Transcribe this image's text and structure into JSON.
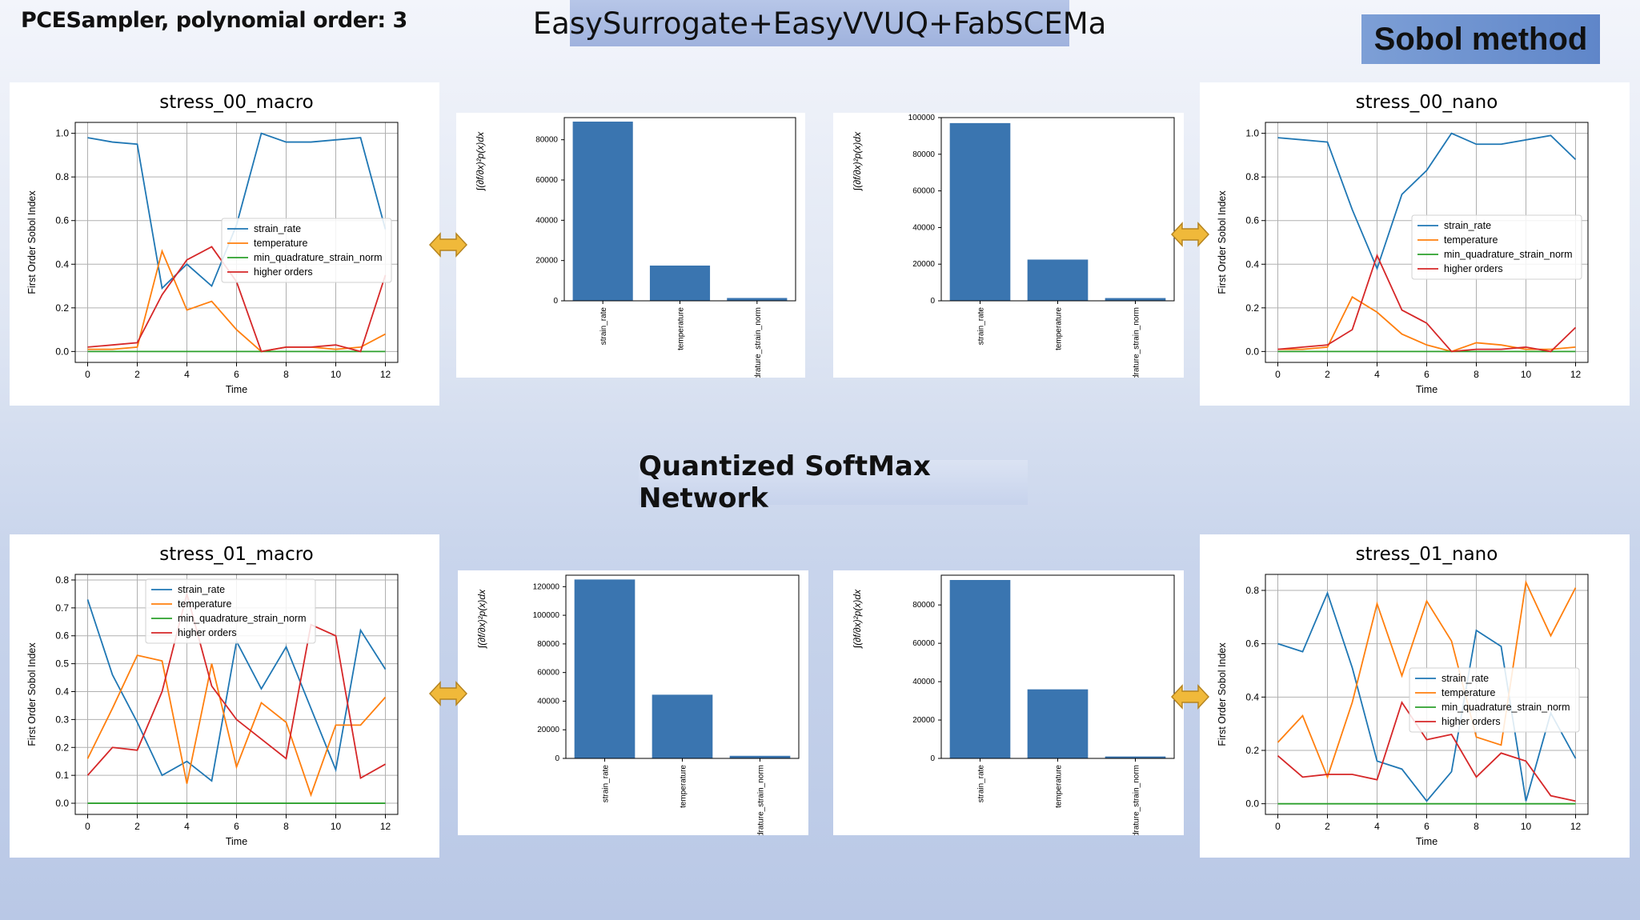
{
  "header": {
    "sampler_label": "PCESampler, polynomial order: 3",
    "tools_label": "EasySurrogate+EasyVVUQ+FabSCEMa",
    "method_label": "Sobol method",
    "network_label": "Quantized SoftMax Network"
  },
  "colors": {
    "strain_rate": "#1f77b4",
    "temperature": "#ff7f0e",
    "min_quadrature_strain_norm": "#2ca02c",
    "higher_orders": "#d62728",
    "bar": "#3a75b0",
    "arrow": "#f0b93a"
  },
  "chart_data": [
    {
      "id": "stress_00_macro",
      "type": "line",
      "title": "stress_00_macro",
      "xlabel": "Time",
      "ylabel": "First Order Sobol Index",
      "xlim": [
        -0.5,
        12.5
      ],
      "ylim": [
        -0.05,
        1.05
      ],
      "xticks": [
        0,
        2,
        4,
        6,
        8,
        10,
        12
      ],
      "yticks": [
        0.0,
        0.2,
        0.4,
        0.6,
        0.8,
        1.0
      ],
      "grid": true,
      "legend_position": "center-right",
      "x": [
        0,
        1,
        2,
        3,
        4,
        5,
        6,
        7,
        8,
        9,
        10,
        11,
        12
      ],
      "series": [
        {
          "name": "strain_rate",
          "values": [
            0.98,
            0.96,
            0.95,
            0.29,
            0.4,
            0.3,
            0.58,
            1.0,
            0.96,
            0.96,
            0.97,
            0.98,
            0.56
          ]
        },
        {
          "name": "temperature",
          "values": [
            0.01,
            0.01,
            0.02,
            0.46,
            0.19,
            0.23,
            0.1,
            0.0,
            0.02,
            0.02,
            0.01,
            0.02,
            0.08
          ]
        },
        {
          "name": "min_quadrature_strain_norm",
          "values": [
            0,
            0,
            0,
            0,
            0,
            0,
            0,
            0,
            0,
            0,
            0,
            0,
            0
          ]
        },
        {
          "name": "higher orders",
          "values": [
            0.02,
            0.03,
            0.04,
            0.26,
            0.42,
            0.48,
            0.32,
            0.0,
            0.02,
            0.02,
            0.03,
            0.0,
            0.35
          ]
        }
      ]
    },
    {
      "id": "bar_00_left",
      "type": "bar",
      "ylabel": "∫(∂f/∂x)²p(x)dx",
      "categories": [
        "strain_rate",
        "temperature",
        "min_quadrature_strain_norm"
      ],
      "values": [
        89000,
        17500,
        1400
      ],
      "ylim": [
        0,
        91000
      ],
      "yticks": [
        0,
        20000,
        40000,
        60000,
        80000
      ]
    },
    {
      "id": "bar_00_right",
      "type": "bar",
      "ylabel": "∫(∂f/∂x)²p(x)dx",
      "categories": [
        "strain_rate",
        "temperature",
        "min_quadrature_strain_norm"
      ],
      "values": [
        97000,
        22500,
        1500
      ],
      "ylim": [
        0,
        100000
      ],
      "yticks": [
        0,
        20000,
        40000,
        60000,
        80000,
        100000
      ]
    },
    {
      "id": "stress_00_nano",
      "type": "line",
      "title": "stress_00_nano",
      "xlabel": "Time",
      "ylabel": "First Order Sobol Index",
      "xlim": [
        -0.5,
        12.5
      ],
      "ylim": [
        -0.05,
        1.05
      ],
      "xticks": [
        0,
        2,
        4,
        6,
        8,
        10,
        12
      ],
      "yticks": [
        0.0,
        0.2,
        0.4,
        0.6,
        0.8,
        1.0
      ],
      "grid": true,
      "legend_position": "center-right",
      "x": [
        0,
        1,
        2,
        3,
        4,
        5,
        6,
        7,
        8,
        9,
        10,
        11,
        12
      ],
      "series": [
        {
          "name": "strain_rate",
          "values": [
            0.98,
            0.97,
            0.96,
            0.65,
            0.38,
            0.72,
            0.83,
            1.0,
            0.95,
            0.95,
            0.97,
            0.99,
            0.88
          ]
        },
        {
          "name": "temperature",
          "values": [
            0.01,
            0.01,
            0.02,
            0.25,
            0.18,
            0.08,
            0.03,
            0.0,
            0.04,
            0.03,
            0.01,
            0.01,
            0.02
          ]
        },
        {
          "name": "min_quadrature_strain_norm",
          "values": [
            0,
            0,
            0,
            0,
            0,
            0,
            0,
            0,
            0,
            0,
            0,
            0,
            0
          ]
        },
        {
          "name": "higher orders",
          "values": [
            0.01,
            0.02,
            0.03,
            0.1,
            0.44,
            0.19,
            0.13,
            0.0,
            0.01,
            0.01,
            0.02,
            0.0,
            0.11
          ]
        }
      ]
    },
    {
      "id": "stress_01_macro",
      "type": "line",
      "title": "stress_01_macro",
      "xlabel": "Time",
      "ylabel": "First Order Sobol Index",
      "xlim": [
        -0.5,
        12.5
      ],
      "ylim": [
        -0.04,
        0.82
      ],
      "xticks": [
        0,
        2,
        4,
        6,
        8,
        10,
        12
      ],
      "yticks": [
        0.0,
        0.1,
        0.2,
        0.3,
        0.4,
        0.5,
        0.6,
        0.7,
        0.8
      ],
      "grid": true,
      "legend_position": "top-center",
      "x": [
        0,
        1,
        2,
        3,
        4,
        5,
        6,
        7,
        8,
        9,
        10,
        11,
        12
      ],
      "series": [
        {
          "name": "strain_rate",
          "values": [
            0.73,
            0.46,
            0.29,
            0.1,
            0.15,
            0.08,
            0.58,
            0.41,
            0.56,
            0.34,
            0.12,
            0.62,
            0.48
          ]
        },
        {
          "name": "temperature",
          "values": [
            0.16,
            0.34,
            0.53,
            0.51,
            0.07,
            0.5,
            0.13,
            0.36,
            0.29,
            0.03,
            0.28,
            0.28,
            0.38
          ]
        },
        {
          "name": "min_quadrature_strain_norm",
          "values": [
            0,
            0,
            0,
            0,
            0,
            0,
            0,
            0,
            0,
            0,
            0,
            0,
            0
          ]
        },
        {
          "name": "higher orders",
          "values": [
            0.1,
            0.2,
            0.19,
            0.4,
            0.75,
            0.42,
            0.3,
            0.23,
            0.16,
            0.64,
            0.6,
            0.09,
            0.14
          ]
        }
      ]
    },
    {
      "id": "bar_01_left",
      "type": "bar",
      "ylabel": "∫(∂f/∂x)²p(x)dx",
      "categories": [
        "strain_rate",
        "temperature",
        "min_quadrature_strain_norm"
      ],
      "values": [
        125000,
        44500,
        1800
      ],
      "ylim": [
        0,
        128000
      ],
      "yticks": [
        0,
        20000,
        40000,
        60000,
        80000,
        100000,
        120000
      ]
    },
    {
      "id": "bar_01_right",
      "type": "bar",
      "ylabel": "∫(∂f/∂x)²p(x)dx",
      "categories": [
        "strain_rate",
        "temperature",
        "min_quadrature_strain_norm"
      ],
      "values": [
        93000,
        36000,
        1000
      ],
      "ylim": [
        0,
        95500
      ],
      "yticks": [
        0,
        20000,
        40000,
        60000,
        80000
      ]
    },
    {
      "id": "stress_01_nano",
      "type": "line",
      "title": "stress_01_nano",
      "xlabel": "Time",
      "ylabel": "First Order Sobol Index",
      "xlim": [
        -0.5,
        12.5
      ],
      "ylim": [
        -0.04,
        0.86
      ],
      "xticks": [
        0,
        2,
        4,
        6,
        8,
        10,
        12
      ],
      "yticks": [
        0.0,
        0.2,
        0.4,
        0.6,
        0.8
      ],
      "grid": true,
      "legend_position": "center-right",
      "x": [
        0,
        1,
        2,
        3,
        4,
        5,
        6,
        7,
        8,
        9,
        10,
        11,
        12
      ],
      "series": [
        {
          "name": "strain_rate",
          "values": [
            0.6,
            0.57,
            0.79,
            0.51,
            0.16,
            0.13,
            0.01,
            0.12,
            0.65,
            0.59,
            0.01,
            0.34,
            0.17
          ]
        },
        {
          "name": "temperature",
          "values": [
            0.23,
            0.33,
            0.1,
            0.38,
            0.75,
            0.48,
            0.76,
            0.61,
            0.25,
            0.22,
            0.83,
            0.63,
            0.81
          ]
        },
        {
          "name": "min_quadrature_strain_norm",
          "values": [
            0,
            0,
            0,
            0,
            0,
            0,
            0,
            0,
            0,
            0,
            0,
            0,
            0
          ]
        },
        {
          "name": "higher orders",
          "values": [
            0.18,
            0.1,
            0.11,
            0.11,
            0.09,
            0.38,
            0.24,
            0.26,
            0.1,
            0.19,
            0.16,
            0.03,
            0.01
          ]
        }
      ]
    }
  ]
}
